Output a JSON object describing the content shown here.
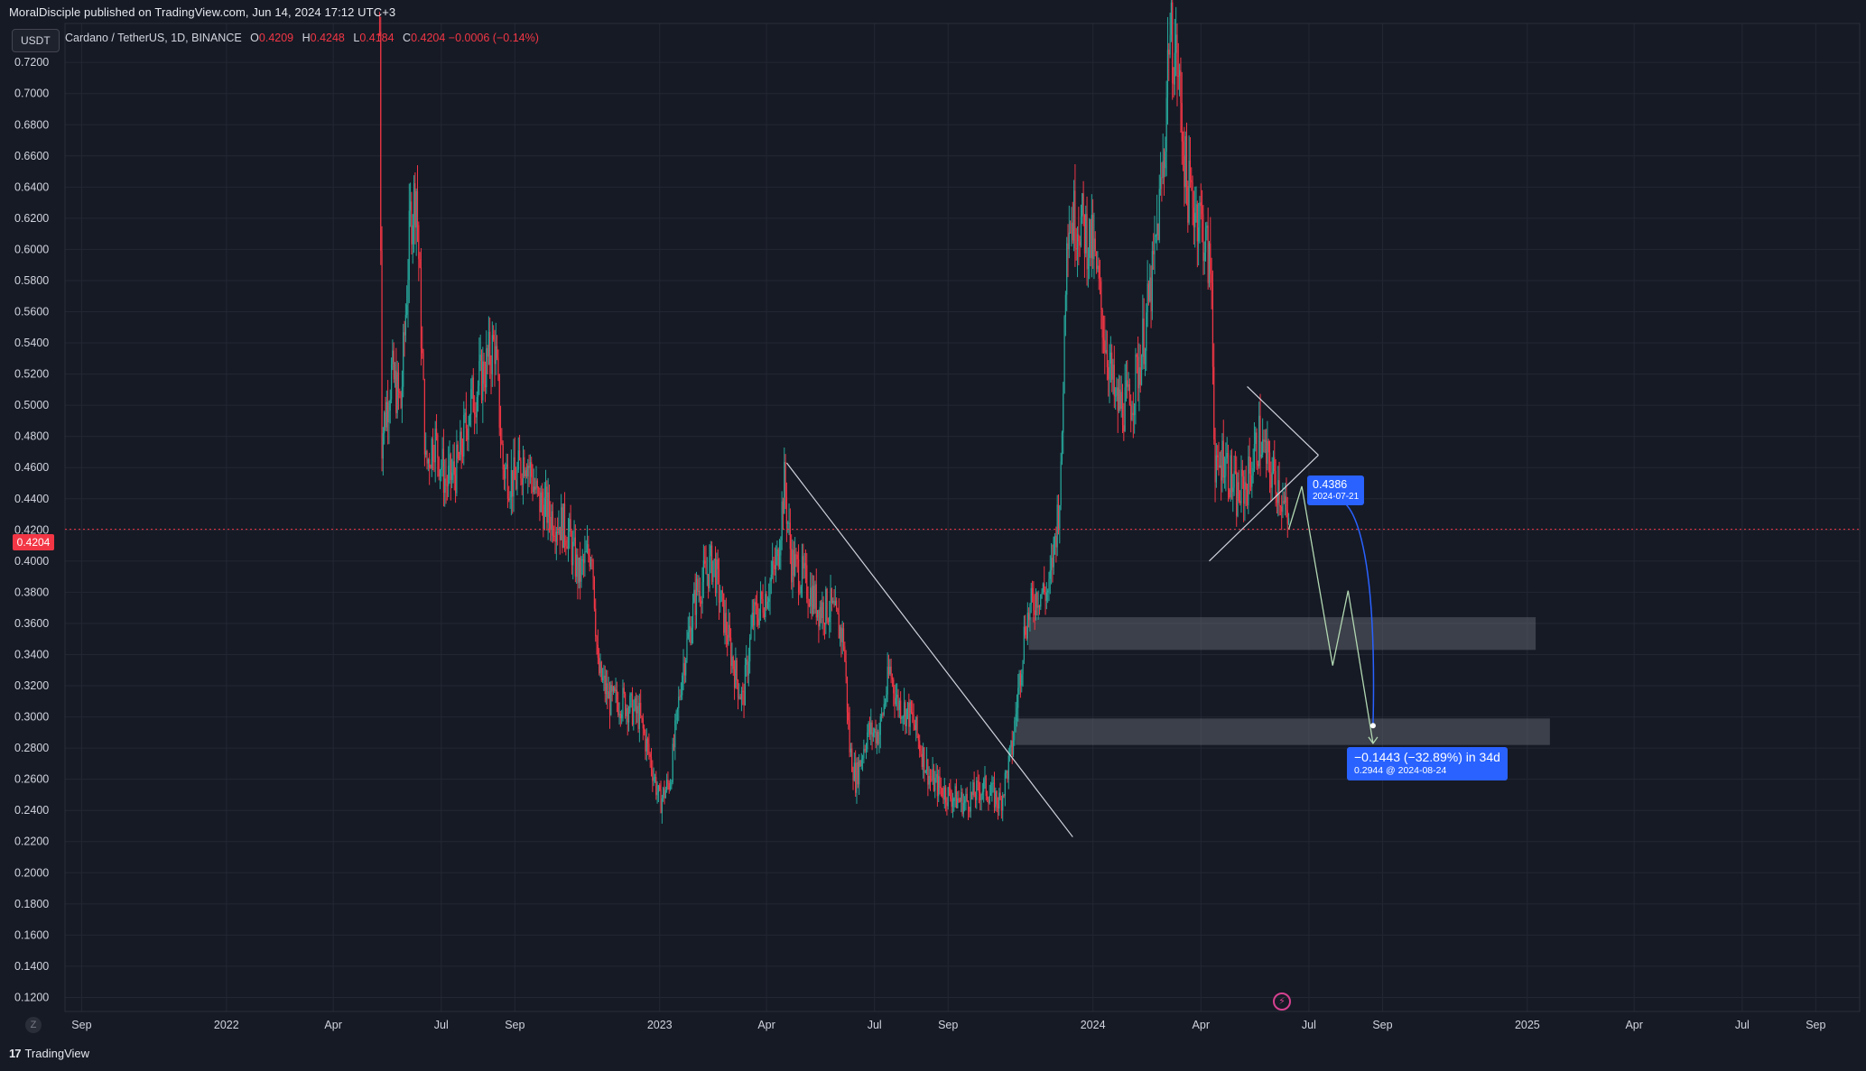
{
  "publisher_line": "MoralDisciple published on TradingView.com, Jun 14, 2024 17:12 UTC+3",
  "footer": {
    "logo_text": "17",
    "brand": "TradingView"
  },
  "axis_unit_badge": "USDT",
  "zoom_button": "Z",
  "legend": {
    "symbol": "Cardano / TetherUS, 1D, BINANCE",
    "open_key": "O",
    "open": "0.4209",
    "high_key": "H",
    "high": "0.4248",
    "low_key": "L",
    "low": "0.4184",
    "close_key": "C",
    "close": "0.4204",
    "change": "−0.0006 (−0.14%)"
  },
  "last_price_label": "0.4204",
  "measure": {
    "start_price": "0.4386",
    "start_date": "2024-07-21",
    "delta_text": "−0.1443 (−32.89%) in 34d",
    "end_text": "0.2944 @ 2024-08-24"
  },
  "colors": {
    "background": "#161a25",
    "grid": "#232733",
    "up": "#26a69a",
    "down": "#f23645",
    "trendline": "#d1d4dc",
    "projection": "#b2d8b2",
    "measure": "#2962ff",
    "zone": "#6b6e78"
  },
  "chart_data": {
    "type": "candlestick",
    "title": "Cardano / TetherUS, 1D, BINANCE",
    "y_axis": {
      "unit": "USDT",
      "ticks": [
        "0.7200",
        "0.7000",
        "0.6800",
        "0.6600",
        "0.6400",
        "0.6200",
        "0.6000",
        "0.5800",
        "0.5600",
        "0.5400",
        "0.5200",
        "0.5000",
        "0.4800",
        "0.4600",
        "0.4400",
        "0.4200",
        "0.4000",
        "0.3800",
        "0.3600",
        "0.3400",
        "0.3200",
        "0.3000",
        "0.2800",
        "0.2600",
        "0.2400",
        "0.2200",
        "0.2000",
        "0.1800",
        "0.1600",
        "0.1400",
        "0.1200"
      ],
      "range": [
        0.111,
        0.745
      ]
    },
    "x_axis": {
      "range": [
        "2021-08-18",
        "2025-10-08"
      ],
      "ticks": [
        {
          "label": "Sep",
          "date": "2021-09-01"
        },
        {
          "label": "2022",
          "date": "2022-01-01"
        },
        {
          "label": "Apr",
          "date": "2022-04-01"
        },
        {
          "label": "Jul",
          "date": "2022-07-01"
        },
        {
          "label": "Sep",
          "date": "2022-09-01"
        },
        {
          "label": "2023",
          "date": "2023-01-01"
        },
        {
          "label": "Apr",
          "date": "2023-04-01"
        },
        {
          "label": "Jul",
          "date": "2023-07-01"
        },
        {
          "label": "Sep",
          "date": "2023-09-01"
        },
        {
          "label": "2024",
          "date": "2024-01-01"
        },
        {
          "label": "Apr",
          "date": "2024-04-01"
        },
        {
          "label": "Jul",
          "date": "2024-07-01"
        },
        {
          "label": "Sep",
          "date": "2024-09-01"
        },
        {
          "label": "2025",
          "date": "2025-01-01"
        },
        {
          "label": "Apr",
          "date": "2025-04-01"
        },
        {
          "label": "Jul",
          "date": "2025-07-01"
        },
        {
          "label": "Sep",
          "date": "2025-09-01"
        }
      ]
    },
    "price_path": [
      [
        "2022-05-10",
        0.74
      ],
      [
        "2022-05-12",
        0.48
      ],
      [
        "2022-05-20",
        0.52
      ],
      [
        "2022-05-28",
        0.5
      ],
      [
        "2022-06-05",
        0.62
      ],
      [
        "2022-06-10",
        0.64
      ],
      [
        "2022-06-18",
        0.46
      ],
      [
        "2022-06-25",
        0.48
      ],
      [
        "2022-07-05",
        0.45
      ],
      [
        "2022-07-15",
        0.46
      ],
      [
        "2022-07-25",
        0.5
      ],
      [
        "2022-08-05",
        0.52
      ],
      [
        "2022-08-15",
        0.54
      ],
      [
        "2022-08-22",
        0.46
      ],
      [
        "2022-09-01",
        0.45
      ],
      [
        "2022-09-10",
        0.47
      ],
      [
        "2022-09-20",
        0.44
      ],
      [
        "2022-10-01",
        0.43
      ],
      [
        "2022-10-15",
        0.42
      ],
      [
        "2022-10-25",
        0.39
      ],
      [
        "2022-11-05",
        0.41
      ],
      [
        "2022-11-10",
        0.33
      ],
      [
        "2022-11-20",
        0.31
      ],
      [
        "2022-12-01",
        0.31
      ],
      [
        "2022-12-15",
        0.3
      ],
      [
        "2022-12-25",
        0.27
      ],
      [
        "2023-01-01",
        0.245
      ],
      [
        "2023-01-10",
        0.26
      ],
      [
        "2023-01-20",
        0.33
      ],
      [
        "2023-02-01",
        0.38
      ],
      [
        "2023-02-15",
        0.4
      ],
      [
        "2023-02-25",
        0.36
      ],
      [
        "2023-03-05",
        0.33
      ],
      [
        "2023-03-12",
        0.31
      ],
      [
        "2023-03-20",
        0.36
      ],
      [
        "2023-04-01",
        0.38
      ],
      [
        "2023-04-10",
        0.4
      ],
      [
        "2023-04-16",
        0.45
      ],
      [
        "2023-04-22",
        0.4
      ],
      [
        "2023-05-01",
        0.39
      ],
      [
        "2023-05-15",
        0.37
      ],
      [
        "2023-05-25",
        0.37
      ],
      [
        "2023-06-05",
        0.35
      ],
      [
        "2023-06-10",
        0.28
      ],
      [
        "2023-06-15",
        0.26
      ],
      [
        "2023-06-25",
        0.29
      ],
      [
        "2023-07-05",
        0.29
      ],
      [
        "2023-07-14",
        0.33
      ],
      [
        "2023-07-20",
        0.31
      ],
      [
        "2023-08-01",
        0.3
      ],
      [
        "2023-08-17",
        0.26
      ],
      [
        "2023-09-01",
        0.25
      ],
      [
        "2023-09-15",
        0.245
      ],
      [
        "2023-10-01",
        0.255
      ],
      [
        "2023-10-15",
        0.245
      ],
      [
        "2023-10-25",
        0.28
      ],
      [
        "2023-11-05",
        0.36
      ],
      [
        "2023-11-15",
        0.38
      ],
      [
        "2023-11-25",
        0.38
      ],
      [
        "2023-12-05",
        0.45
      ],
      [
        "2023-12-10",
        0.62
      ],
      [
        "2023-12-20",
        0.62
      ],
      [
        "2024-01-01",
        0.6
      ],
      [
        "2024-01-10",
        0.55
      ],
      [
        "2024-01-20",
        0.5
      ],
      [
        "2024-02-01",
        0.5
      ],
      [
        "2024-02-10",
        0.53
      ],
      [
        "2024-02-20",
        0.58
      ],
      [
        "2024-03-01",
        0.66
      ],
      [
        "2024-03-05",
        0.74
      ],
      [
        "2024-03-12",
        0.72
      ],
      [
        "2024-03-20",
        0.64
      ],
      [
        "2024-04-01",
        0.62
      ],
      [
        "2024-04-10",
        0.58
      ],
      [
        "2024-04-13",
        0.45
      ],
      [
        "2024-04-20",
        0.47
      ],
      [
        "2024-05-01",
        0.44
      ],
      [
        "2024-05-10",
        0.45
      ],
      [
        "2024-05-20",
        0.48
      ],
      [
        "2024-05-28",
        0.46
      ],
      [
        "2024-06-05",
        0.45
      ],
      [
        "2024-06-14",
        0.4204
      ]
    ],
    "trendlines": [
      {
        "from": [
          "2023-04-18",
          0.463
        ],
        "to": [
          "2023-12-15",
          0.223
        ]
      },
      {
        "from": [
          "2024-04-08",
          0.4
        ],
        "to": [
          "2024-07-09",
          0.468
        ]
      },
      {
        "from": [
          "2024-05-10",
          0.512
        ],
        "to": [
          "2024-07-09",
          0.468
        ]
      }
    ],
    "projection_path": [
      [
        "2024-06-14",
        0.4204
      ],
      [
        "2024-06-25",
        0.448
      ],
      [
        "2024-07-21",
        0.333
      ],
      [
        "2024-08-03",
        0.381
      ],
      [
        "2024-08-24",
        0.283
      ]
    ],
    "zones": [
      {
        "price_top": 0.364,
        "price_bottom": 0.343,
        "from": "2023-11-08",
        "to": "2025-01-08"
      },
      {
        "price_top": 0.299,
        "price_bottom": 0.282,
        "from": "2023-10-28",
        "to": "2025-01-20"
      }
    ],
    "last_price": 0.4204,
    "measure": {
      "from": [
        "2024-07-21",
        0.4386
      ],
      "to": [
        "2024-08-24",
        0.2944
      ]
    }
  }
}
